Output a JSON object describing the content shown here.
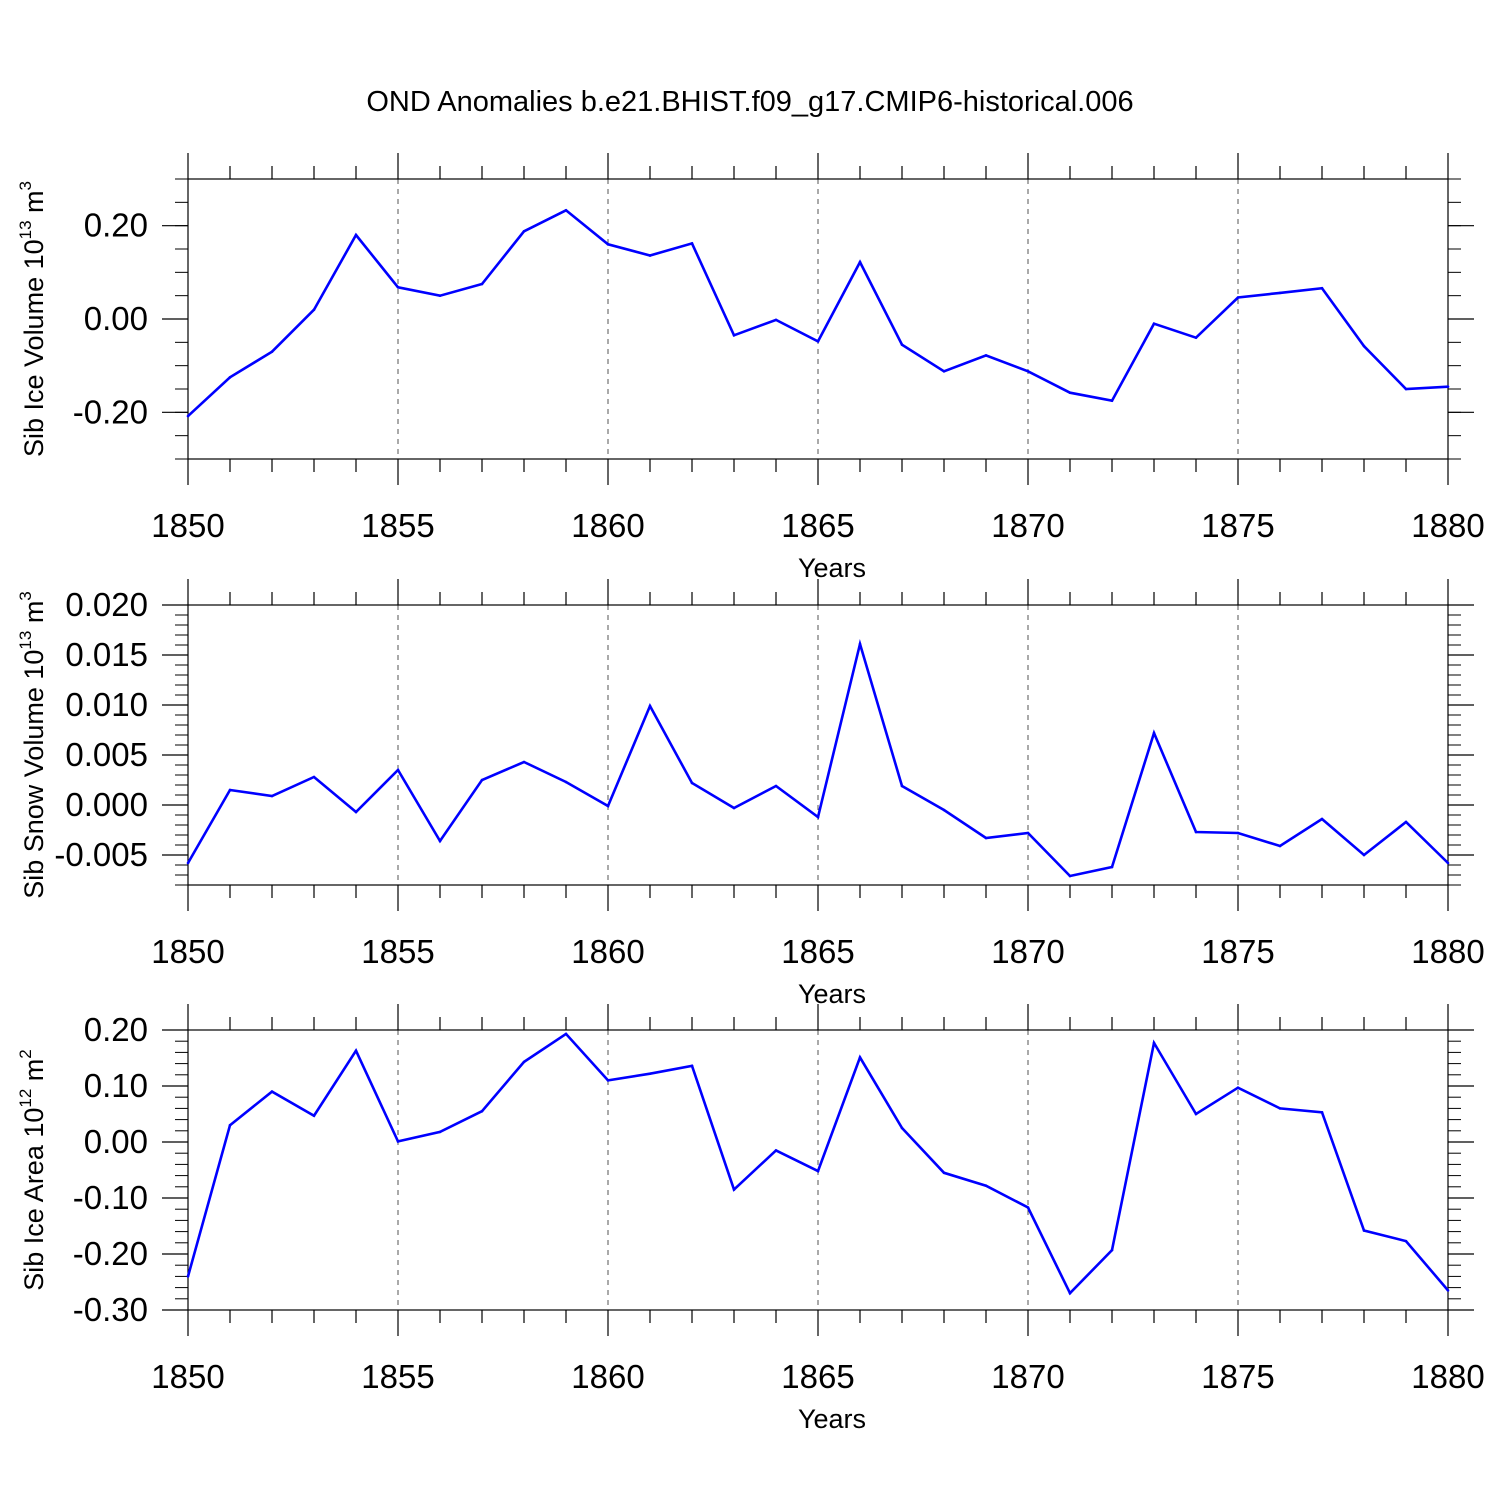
{
  "title": "OND Anomalies b.e21.BHIST.f09_g17.CMIP6-historical.006",
  "colors": {
    "line": "#0000ff",
    "axis": "#000000",
    "grid": "#555555"
  },
  "chart_data": [
    {
      "type": "line",
      "xlabel": "Years",
      "ylabel": {
        "base": "Sib Ice Volume 10",
        "exp1": "13",
        "unit": " m",
        "exp2": "3"
      },
      "xlim": [
        1850,
        1880
      ],
      "ylim": [
        -0.3,
        0.3
      ],
      "x_ticks": [
        1850,
        1855,
        1860,
        1865,
        1870,
        1875,
        1880
      ],
      "x_tick_labels": [
        "1850",
        "1855",
        "1860",
        "1865",
        "1870",
        "1875",
        "1880"
      ],
      "y_ticks": [
        -0.2,
        0.0,
        0.2
      ],
      "y_tick_labels": [
        "-0.20",
        "0.00",
        "0.20"
      ],
      "y_minor_step": 0.05,
      "x_grid": "dashed",
      "x": [
        1850,
        1851,
        1852,
        1853,
        1854,
        1855,
        1856,
        1857,
        1858,
        1859,
        1860,
        1861,
        1862,
        1863,
        1864,
        1865,
        1866,
        1867,
        1868,
        1869,
        1870,
        1871,
        1872,
        1873,
        1874,
        1875,
        1876,
        1877,
        1878,
        1879,
        1880
      ],
      "values": [
        -0.208,
        -0.125,
        -0.07,
        0.02,
        0.18,
        0.068,
        0.05,
        0.075,
        0.188,
        0.233,
        0.16,
        0.136,
        0.162,
        -0.035,
        -0.002,
        -0.048,
        0.122,
        -0.055,
        -0.112,
        -0.078,
        -0.112,
        -0.158,
        -0.175,
        -0.01,
        -0.04,
        0.046,
        0.056,
        0.066,
        -0.058,
        -0.15,
        -0.145
      ]
    },
    {
      "type": "line",
      "xlabel": "Years",
      "ylabel": {
        "base": "Sib Snow Volume 10",
        "exp1": "13",
        "unit": " m",
        "exp2": "3"
      },
      "xlim": [
        1850,
        1880
      ],
      "ylim": [
        -0.008,
        0.02
      ],
      "x_ticks": [
        1850,
        1855,
        1860,
        1865,
        1870,
        1875,
        1880
      ],
      "x_tick_labels": [
        "1850",
        "1855",
        "1860",
        "1865",
        "1870",
        "1875",
        "1880"
      ],
      "y_ticks": [
        -0.005,
        0.0,
        0.005,
        0.01,
        0.015,
        0.02
      ],
      "y_tick_labels": [
        "-0.005",
        "0.000",
        "0.005",
        "0.010",
        "0.015",
        "0.020"
      ],
      "y_minor_step": 0.001,
      "x_grid": "dashed",
      "x": [
        1850,
        1851,
        1852,
        1853,
        1854,
        1855,
        1856,
        1857,
        1858,
        1859,
        1860,
        1861,
        1862,
        1863,
        1864,
        1865,
        1866,
        1867,
        1868,
        1869,
        1870,
        1871,
        1872,
        1873,
        1874,
        1875,
        1876,
        1877,
        1878,
        1879,
        1880
      ],
      "values": [
        -0.0058,
        0.0015,
        0.0009,
        0.0028,
        -0.0007,
        0.0035,
        -0.0036,
        0.0025,
        0.0043,
        0.0023,
        -0.0001,
        0.0099,
        0.0022,
        -0.0003,
        0.0019,
        -0.0012,
        0.0161,
        0.0019,
        -0.0005,
        -0.0033,
        -0.0028,
        -0.0071,
        -0.0062,
        0.0072,
        -0.0027,
        -0.0028,
        -0.0041,
        -0.0014,
        -0.005,
        -0.0017,
        -0.0058
      ]
    },
    {
      "type": "line",
      "xlabel": "Years",
      "ylabel": {
        "base": "Sib Ice Area 10",
        "exp1": "12",
        "unit": " m",
        "exp2": "2"
      },
      "xlim": [
        1850,
        1880
      ],
      "ylim": [
        -0.3,
        0.2
      ],
      "x_ticks": [
        1850,
        1855,
        1860,
        1865,
        1870,
        1875,
        1880
      ],
      "x_tick_labels": [
        "1850",
        "1855",
        "1860",
        "1865",
        "1870",
        "1875",
        "1880"
      ],
      "y_ticks": [
        -0.3,
        -0.2,
        -0.1,
        0.0,
        0.1,
        0.2
      ],
      "y_tick_labels": [
        "-0.30",
        "-0.20",
        "-0.10",
        "0.00",
        "0.10",
        "0.20"
      ],
      "y_minor_step": 0.02,
      "x_grid": "dashed",
      "x": [
        1850,
        1851,
        1852,
        1853,
        1854,
        1855,
        1856,
        1857,
        1858,
        1859,
        1860,
        1861,
        1862,
        1863,
        1864,
        1865,
        1866,
        1867,
        1868,
        1869,
        1870,
        1871,
        1872,
        1873,
        1874,
        1875,
        1876,
        1877,
        1878,
        1879,
        1880
      ],
      "values": [
        -0.24,
        0.03,
        0.09,
        0.047,
        0.163,
        0.001,
        0.018,
        0.055,
        0.143,
        0.193,
        0.11,
        0.122,
        0.136,
        -0.085,
        -0.015,
        -0.052,
        0.151,
        0.025,
        -0.055,
        -0.078,
        -0.117,
        -0.27,
        -0.193,
        0.177,
        0.05,
        0.097,
        0.06,
        0.053,
        -0.158,
        -0.177,
        -0.265
      ]
    }
  ]
}
